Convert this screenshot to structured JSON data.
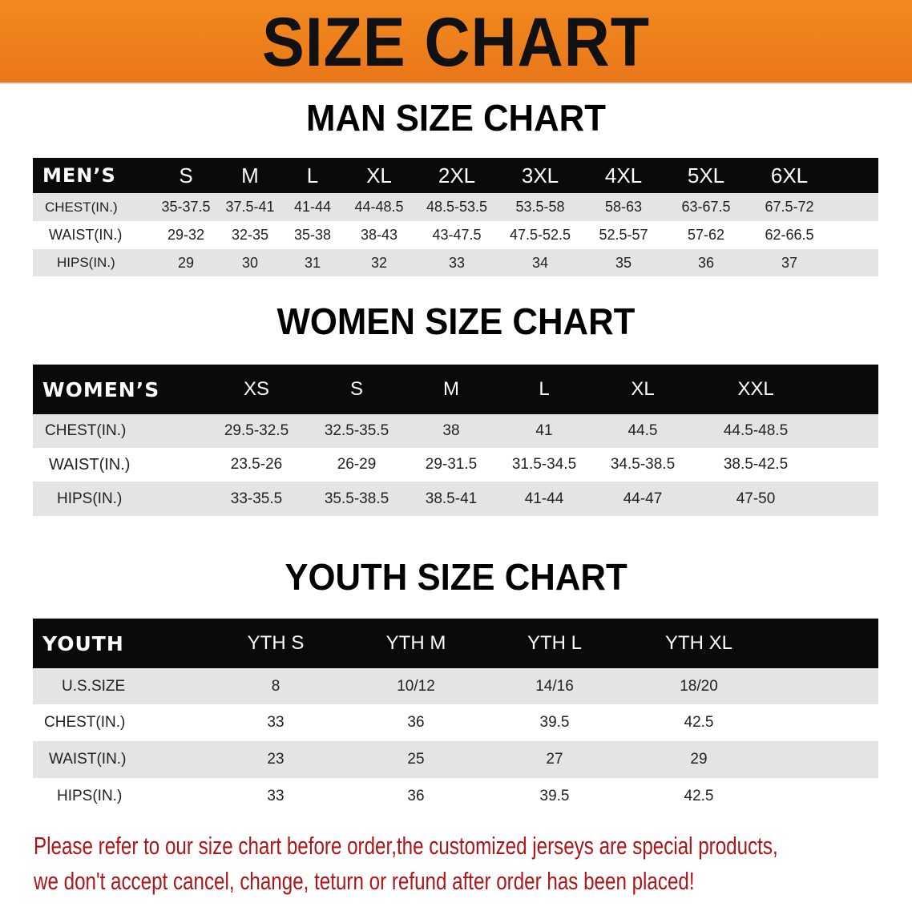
{
  "banner": {
    "title": "SIZE CHART",
    "color": "#ef821c"
  },
  "men": {
    "title": "MAN SIZE CHART",
    "header": [
      "MEN’S",
      "S",
      "M",
      "L",
      "XL",
      "2XL",
      "3XL",
      "4XL",
      "5XL",
      "6XL"
    ],
    "rows": [
      [
        "CHEST(IN.)",
        "35-37.5",
        "37.5-41",
        "41-44",
        "44-48.5",
        "48.5-53.5",
        "53.5-58",
        "58-63",
        "63-67.5",
        "67.5-72"
      ],
      [
        "WAIST(IN.)",
        "29-32",
        "32-35",
        "35-38",
        "38-43",
        "43-47.5",
        "47.5-52.5",
        "52.5-57",
        "57-62",
        "62-66.5"
      ],
      [
        "HIPS(IN.)",
        "29",
        "30",
        "31",
        "32",
        "33",
        "34",
        "35",
        "36",
        "37"
      ]
    ]
  },
  "women": {
    "title": "WOMEN SIZE CHART",
    "header": [
      "WOMEN’S",
      "XS",
      "S",
      "M",
      "L",
      "XL",
      "XXL"
    ],
    "rows": [
      [
        "CHEST(IN.)",
        "29.5-32.5",
        "32.5-35.5",
        "38",
        "41",
        "44.5",
        "44.5-48.5"
      ],
      [
        "WAIST(IN.)",
        "23.5-26",
        "26-29",
        "29-31.5",
        "31.5-34.5",
        "34.5-38.5",
        "38.5-42.5"
      ],
      [
        "HIPS(IN.)",
        "33-35.5",
        "35.5-38.5",
        "38.5-41",
        "41-44",
        "44-47",
        "47-50"
      ]
    ]
  },
  "youth": {
    "title": "YOUTH SIZE CHART",
    "header": [
      "YOUTH",
      "YTH S",
      "YTH M",
      "YTH L",
      "YTH XL"
    ],
    "rows": [
      [
        "U.S.SIZE",
        "8",
        "10/12",
        "14/16",
        "18/20"
      ],
      [
        "CHEST(IN.)",
        "33",
        "36",
        "39.5",
        "42.5"
      ],
      [
        "WAIST(IN.)",
        "23",
        "25",
        "27",
        "29"
      ],
      [
        "HIPS(IN.)",
        "33",
        "36",
        "39.5",
        "42.5"
      ]
    ]
  },
  "notice": {
    "line1": "Please refer to our size chart before order,the customized jerseys are special products,",
    "line2": "we don't accept cancel, change, teturn or refund after order has been placed!",
    "color": "#ad1519"
  }
}
